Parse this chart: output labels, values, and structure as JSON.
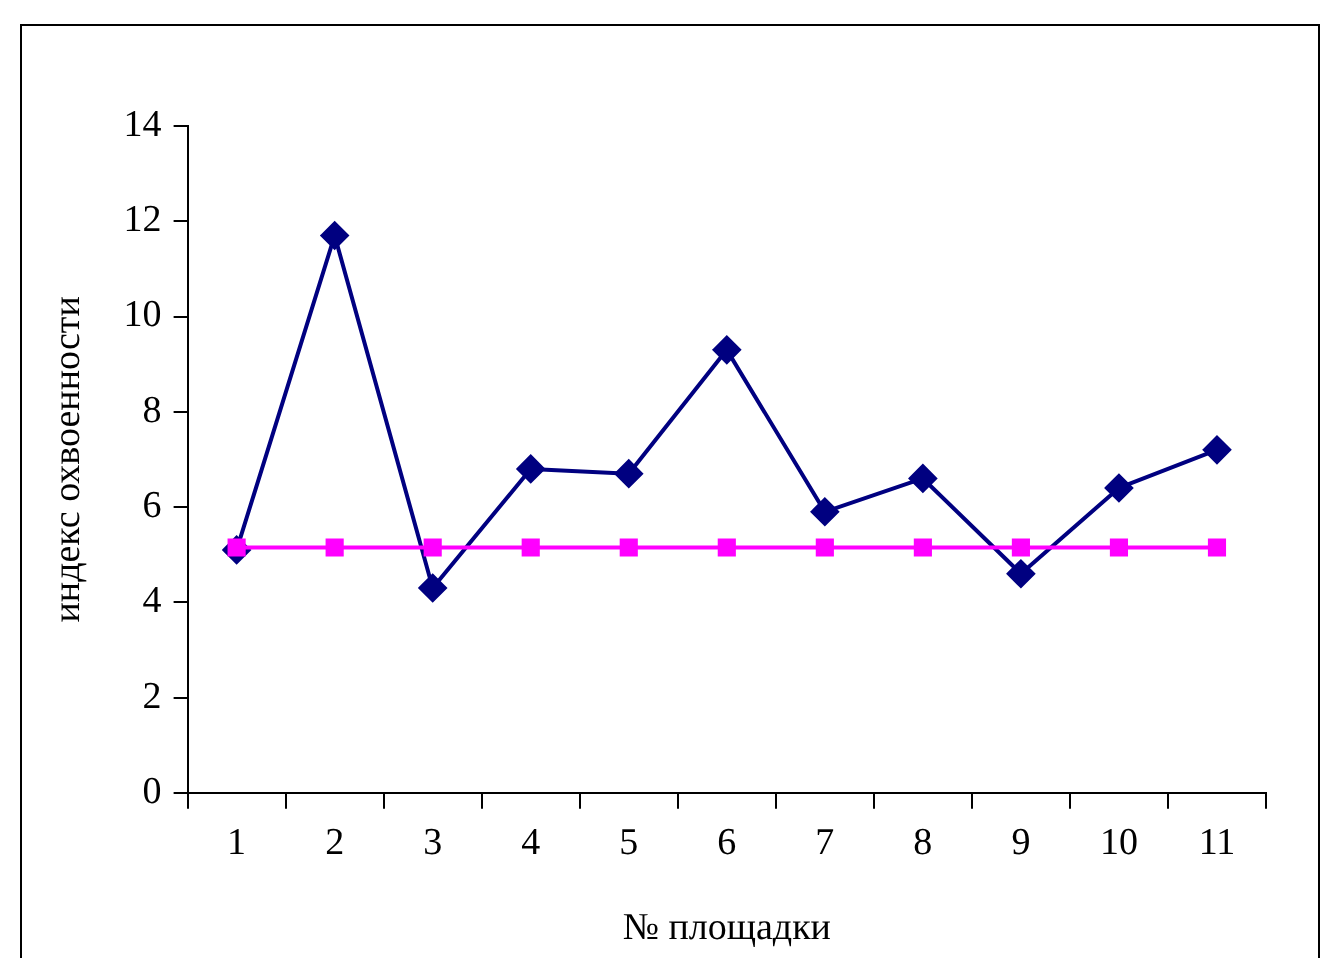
{
  "chart_data": {
    "type": "line",
    "xlabel": "№ площадки",
    "ylabel": "индекс охвоенности",
    "categories": [
      "1",
      "2",
      "3",
      "4",
      "5",
      "6",
      "7",
      "8",
      "9",
      "10",
      "11"
    ],
    "series": [
      {
        "color": "#000080",
        "marker": "diamond",
        "values": [
          5.1,
          11.7,
          4.3,
          6.8,
          6.7,
          9.3,
          5.9,
          6.6,
          4.6,
          6.4,
          7.2
        ]
      },
      {
        "color": "#ff00ff",
        "marker": "square",
        "values": [
          5.15,
          5.15,
          5.15,
          5.15,
          5.15,
          5.15,
          5.15,
          5.15,
          5.15,
          5.15,
          5.15
        ]
      }
    ],
    "ylim": [
      0,
      14
    ],
    "yticks": [
      0,
      2,
      4,
      6,
      8,
      10,
      12,
      14
    ],
    "grid": false,
    "legend": false
  }
}
